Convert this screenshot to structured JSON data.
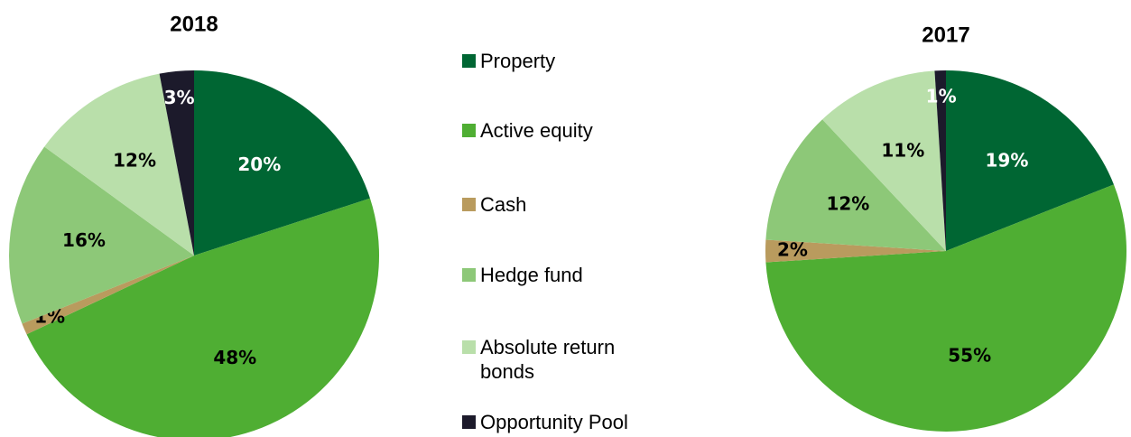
{
  "chart_data": {
    "type": "pie",
    "categories": [
      "Property",
      "Active equity",
      "Cash",
      "Hedge fund",
      "Absolute return bonds",
      "Opportunity Pool"
    ],
    "colors": [
      "#006633",
      "#4fae33",
      "#b99b5e",
      "#8dc878",
      "#b9dfaa",
      "#1c1a2b"
    ],
    "pies": [
      {
        "title": "2018",
        "values": [
          20,
          48,
          1,
          16,
          12,
          3
        ],
        "value_labels": [
          "20%",
          "48%",
          "1%",
          "16%",
          "12%",
          "3%"
        ]
      },
      {
        "title": "2017",
        "values": [
          19,
          55,
          2,
          12,
          11,
          1
        ],
        "value_labels": [
          "19%",
          "55%",
          "2%",
          "12%",
          "11%",
          "1%"
        ]
      }
    ],
    "legend": "center"
  }
}
